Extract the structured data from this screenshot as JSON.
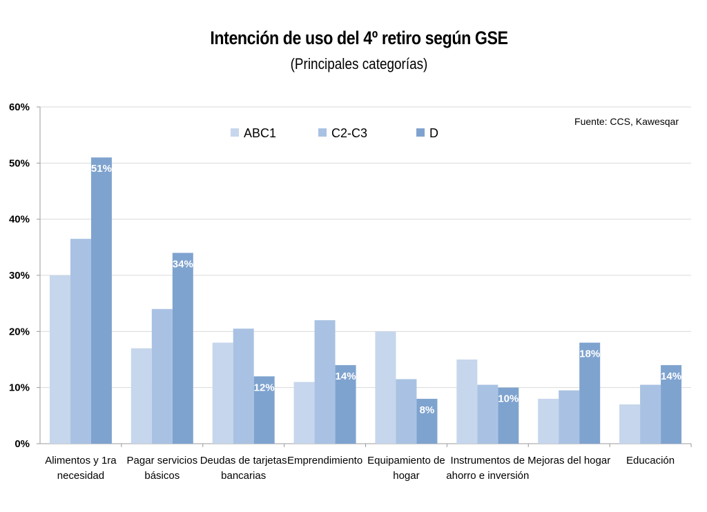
{
  "chart_data": {
    "type": "bar",
    "title": "Intención de uso del 4º retiro según GSE",
    "subtitle": "(Principales categorías)",
    "source": "Fuente: CCS, Kawesqar",
    "categories": [
      [
        "Alimentos y 1ra",
        "necesidad"
      ],
      [
        "Pagar servicios",
        "básicos"
      ],
      [
        "Deudas de tarjetas",
        "bancarias"
      ],
      [
        "Emprendimiento"
      ],
      [
        "Equipamiento de",
        "hogar"
      ],
      [
        "Instrumentos de",
        "ahorro e inversión"
      ],
      [
        "Mejoras del hogar"
      ],
      [
        "Educación"
      ]
    ],
    "series": [
      {
        "name": "ABC1",
        "color": "#c6d6ec",
        "values": [
          30,
          17,
          18,
          11,
          20,
          15,
          8,
          7
        ]
      },
      {
        "name": "C2-C3",
        "color": "#a9c2e3",
        "values": [
          36.5,
          24,
          20.5,
          22,
          11.5,
          10.5,
          9.5,
          10.5
        ]
      },
      {
        "name": "D",
        "color": "#7fa3cf",
        "values": [
          51,
          34,
          12,
          14,
          8,
          10,
          18,
          14
        ],
        "labels": [
          "51%",
          "34%",
          "12%",
          "14%",
          "8%",
          "10%",
          "18%",
          "14%"
        ]
      }
    ],
    "yticks": [
      "0%",
      "10%",
      "20%",
      "30%",
      "40%",
      "50%",
      "60%"
    ],
    "ylim": [
      0,
      60
    ],
    "grid": true,
    "legend_position": "top"
  }
}
